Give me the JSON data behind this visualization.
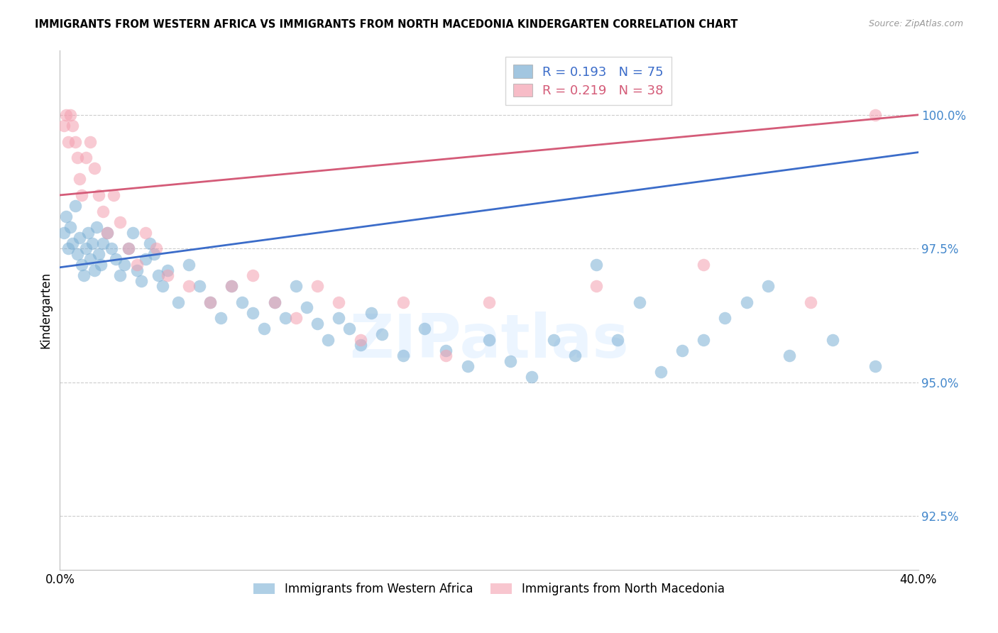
{
  "title": "IMMIGRANTS FROM WESTERN AFRICA VS IMMIGRANTS FROM NORTH MACEDONIA KINDERGARTEN CORRELATION CHART",
  "source": "Source: ZipAtlas.com",
  "ylabel": "Kindergarten",
  "yticks": [
    92.5,
    95.0,
    97.5,
    100.0
  ],
  "ytick_labels": [
    "92.5%",
    "95.0%",
    "97.5%",
    "100.0%"
  ],
  "xlim": [
    0.0,
    0.4
  ],
  "ylim": [
    91.5,
    101.2
  ],
  "blue_color": "#7BAFD4",
  "pink_color": "#F4A0B0",
  "blue_line_color": "#3B6CC9",
  "pink_line_color": "#D45B78",
  "legend_blue_R": "0.193",
  "legend_blue_N": "75",
  "legend_pink_R": "0.219",
  "legend_pink_N": "38",
  "blue_label": "Immigrants from Western Africa",
  "pink_label": "Immigrants from North Macedonia",
  "watermark": "ZIPatlas",
  "blue_scatter_x": [
    0.002,
    0.003,
    0.004,
    0.005,
    0.006,
    0.007,
    0.008,
    0.009,
    0.01,
    0.011,
    0.012,
    0.013,
    0.014,
    0.015,
    0.016,
    0.017,
    0.018,
    0.019,
    0.02,
    0.022,
    0.024,
    0.026,
    0.028,
    0.03,
    0.032,
    0.034,
    0.036,
    0.038,
    0.04,
    0.042,
    0.044,
    0.046,
    0.048,
    0.05,
    0.055,
    0.06,
    0.065,
    0.07,
    0.075,
    0.08,
    0.085,
    0.09,
    0.095,
    0.1,
    0.105,
    0.11,
    0.115,
    0.12,
    0.125,
    0.13,
    0.135,
    0.14,
    0.145,
    0.15,
    0.16,
    0.17,
    0.18,
    0.19,
    0.2,
    0.21,
    0.22,
    0.23,
    0.24,
    0.25,
    0.26,
    0.27,
    0.28,
    0.29,
    0.3,
    0.31,
    0.32,
    0.33,
    0.34,
    0.36,
    0.38
  ],
  "blue_scatter_y": [
    97.8,
    98.1,
    97.5,
    97.9,
    97.6,
    98.3,
    97.4,
    97.7,
    97.2,
    97.0,
    97.5,
    97.8,
    97.3,
    97.6,
    97.1,
    97.9,
    97.4,
    97.2,
    97.6,
    97.8,
    97.5,
    97.3,
    97.0,
    97.2,
    97.5,
    97.8,
    97.1,
    96.9,
    97.3,
    97.6,
    97.4,
    97.0,
    96.8,
    97.1,
    96.5,
    97.2,
    96.8,
    96.5,
    96.2,
    96.8,
    96.5,
    96.3,
    96.0,
    96.5,
    96.2,
    96.8,
    96.4,
    96.1,
    95.8,
    96.2,
    96.0,
    95.7,
    96.3,
    95.9,
    95.5,
    96.0,
    95.6,
    95.3,
    95.8,
    95.4,
    95.1,
    95.8,
    95.5,
    97.2,
    95.8,
    96.5,
    95.2,
    95.6,
    95.8,
    96.2,
    96.5,
    96.8,
    95.5,
    95.8,
    95.3
  ],
  "pink_scatter_x": [
    0.002,
    0.003,
    0.004,
    0.005,
    0.006,
    0.007,
    0.008,
    0.009,
    0.01,
    0.012,
    0.014,
    0.016,
    0.018,
    0.02,
    0.022,
    0.025,
    0.028,
    0.032,
    0.036,
    0.04,
    0.045,
    0.05,
    0.06,
    0.07,
    0.08,
    0.09,
    0.1,
    0.11,
    0.12,
    0.13,
    0.14,
    0.16,
    0.18,
    0.2,
    0.25,
    0.3,
    0.35,
    0.38
  ],
  "pink_scatter_y": [
    99.8,
    100.0,
    99.5,
    100.0,
    99.8,
    99.5,
    99.2,
    98.8,
    98.5,
    99.2,
    99.5,
    99.0,
    98.5,
    98.2,
    97.8,
    98.5,
    98.0,
    97.5,
    97.2,
    97.8,
    97.5,
    97.0,
    96.8,
    96.5,
    96.8,
    97.0,
    96.5,
    96.2,
    96.8,
    96.5,
    95.8,
    96.5,
    95.5,
    96.5,
    96.8,
    97.2,
    96.5,
    100.0
  ],
  "blue_trend_x": [
    0.0,
    0.4
  ],
  "blue_trend_y": [
    97.15,
    99.3
  ],
  "pink_trend_x": [
    0.0,
    0.4
  ],
  "pink_trend_y": [
    98.5,
    100.0
  ],
  "xtick_positions": [
    0.0,
    0.08,
    0.16,
    0.24,
    0.32,
    0.4
  ],
  "xtick_labels": [
    "0.0%",
    "",
    "",
    "",
    "",
    "40.0%"
  ]
}
